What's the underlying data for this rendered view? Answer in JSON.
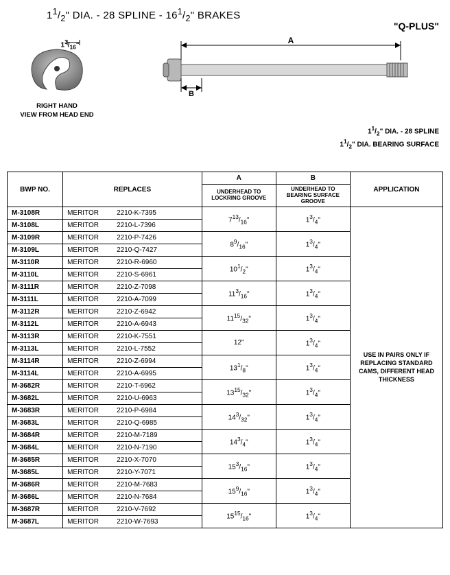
{
  "title_html": "1<sup>1</sup>/<sub>2</sub>\" DIA. - 28 SPLINE - 16<sup>1</sup>/<sub>2</sub>\" BRAKES",
  "brand": "\"Q-PLUS\"",
  "cam_dim_html": "1<sup>3</sup>/<sub>16</sub>\"",
  "cam_label": "RIGHT HAND\nVIEW FROM HEAD END",
  "shaft_note1_html": "1<sup>1</sup>/<sub>2</sub>\" DIA. - 28 SPLINE",
  "shaft_note2_html": "1<sup>1</sup>/<sub>2</sub>\" DIA. BEARING SURFACE",
  "dim_label_a": "A",
  "dim_label_b": "B",
  "table": {
    "headers": {
      "bwp": "BWP NO.",
      "replaces": "REPLACES",
      "a": "A",
      "a_sub": "UNDERHEAD TO LOCKRING GROOVE",
      "b": "B",
      "b_sub": "UNDERHEAD TO BEARING SURFACE GROOVE",
      "app": "APPLICATION"
    },
    "application_html": "USE IN PAIRS ONLY IF REPLACING STANDARD CAMS, DIFFERENT HEAD THICKNESS",
    "pairs": [
      {
        "r": "M-3108R",
        "l": "M-3108L",
        "rrep": "2210-K-7395",
        "lrep": "2210-L-7396",
        "a": "7<sup>13</sup>/<sub>16</sub>\"",
        "b": "1<sup>3</sup>/<sub>4</sub>\""
      },
      {
        "r": "M-3109R",
        "l": "M-3109L",
        "rrep": "2210-P-7426",
        "lrep": "2210-Q-7427",
        "a": "8<sup>9</sup>/<sub>16</sub>\"",
        "b": "1<sup>3</sup>/<sub>4</sub>\""
      },
      {
        "r": "M-3110R",
        "l": "M-3110L",
        "rrep": "2210-R-6960",
        "lrep": "2210-S-6961",
        "a": "10<sup>1</sup>/<sub>2</sub>\"",
        "b": "1<sup>3</sup>/<sub>4</sub>\""
      },
      {
        "r": "M-3111R",
        "l": "M-3111L",
        "rrep": "2210-Z-7098",
        "lrep": "2210-A-7099",
        "a": "11<sup>3</sup>/<sub>16</sub>\"",
        "b": "1<sup>3</sup>/<sub>4</sub>\""
      },
      {
        "r": "M-3112R",
        "l": "M-3112L",
        "rrep": "2210-Z-6942",
        "lrep": "2210-A-6943",
        "a": "11<sup>15</sup>/<sub>32</sub>\"",
        "b": "1<sup>3</sup>/<sub>4</sub>\""
      },
      {
        "r": "M-3113R",
        "l": "M-3113L",
        "rrep": "2210-K-7551",
        "lrep": "2210-L-7552",
        "a": "12\"",
        "b": "1<sup>3</sup>/<sub>4</sub>\""
      },
      {
        "r": "M-3114R",
        "l": "M-3114L",
        "rrep": "2210-Z-6994",
        "lrep": "2210-A-6995",
        "a": "13<sup>1</sup>/<sub>8</sub>\"",
        "b": "1<sup>3</sup>/<sub>4</sub>\""
      },
      {
        "r": "M-3682R",
        "l": "M-3682L",
        "rrep": "2210-T-6962",
        "lrep": "2210-U-6963",
        "a": "13<sup>15</sup>/<sub>32</sub>\"",
        "b": "1<sup>3</sup>/<sub>4</sub>\""
      },
      {
        "r": "M-3683R",
        "l": "M-3683L",
        "rrep": "2210-P-6984",
        "lrep": "2210-Q-6985",
        "a": "14<sup>3</sup>/<sub>32</sub>\"",
        "b": "1<sup>3</sup>/<sub>4</sub>\""
      },
      {
        "r": "M-3684R",
        "l": "M-3684L",
        "rrep": "2210-M-7189",
        "lrep": "2210-N-7190",
        "a": "14<sup>3</sup>/<sub>4</sub>\"",
        "b": "1<sup>3</sup>/<sub>4</sub>\""
      },
      {
        "r": "M-3685R",
        "l": "M-3685L",
        "rrep": "2210-X-7070",
        "lrep": "2210-Y-7071",
        "a": "15<sup>3</sup>/<sub>16</sub>\"",
        "b": "1<sup>3</sup>/<sub>4</sub>\""
      },
      {
        "r": "M-3686R",
        "l": "M-3686L",
        "rrep": "2210-M-7683",
        "lrep": "2210-N-7684",
        "a": "15<sup>9</sup>/<sub>16</sub>\"",
        "b": "1<sup>3</sup>/<sub>4</sub>\""
      },
      {
        "r": "M-3687R",
        "l": "M-3687L",
        "rrep": "2210-V-7692",
        "lrep": "2210-W-7693",
        "a": "15<sup>15</sup>/<sub>16</sub>\"",
        "b": "1<sup>3</sup>/<sub>4</sub>\""
      }
    ],
    "rep_brand": "MERITOR"
  },
  "colors": {
    "text": "#000000",
    "border": "#000000",
    "bg": "#ffffff",
    "cam_fill": "#9a9a9a",
    "shaft_fill": "#cfcfcf",
    "shaft_stroke": "#555555"
  }
}
